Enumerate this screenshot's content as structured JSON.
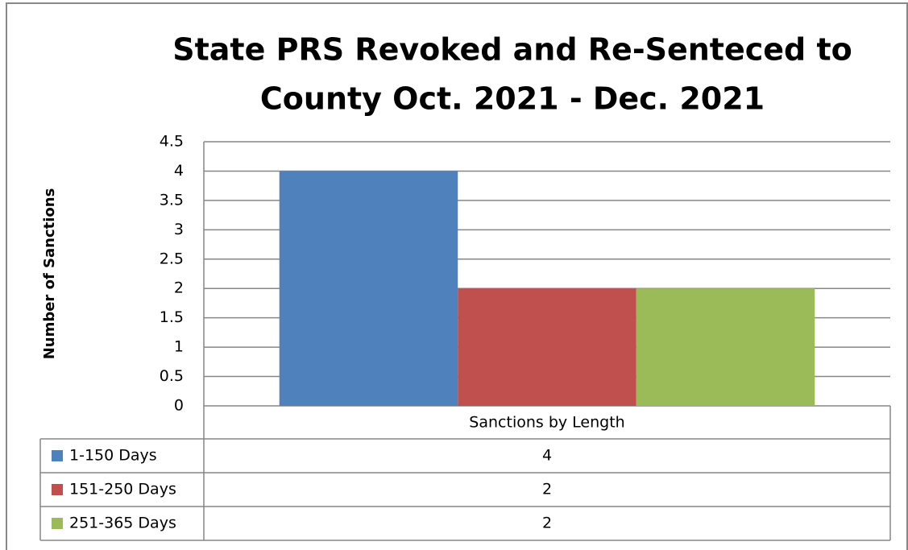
{
  "chart_data": {
    "type": "bar",
    "title": [
      "State PRS Revoked and Re-Senteced to",
      "County Oct. 2021 - Dec. 2021"
    ],
    "y_label": "Number of Sanctions",
    "categories": [
      "Sanctions by Length"
    ],
    "series": [
      {
        "name": "1-150 Days",
        "color": "#4f81bd",
        "values": [
          4
        ]
      },
      {
        "name": "151-250 Days",
        "color": "#c0504d",
        "values": [
          2
        ]
      },
      {
        "name": "251-365 Days",
        "color": "#9bbb59",
        "values": [
          2
        ]
      }
    ],
    "ylim": [
      0,
      4.5
    ],
    "yticks": [
      0,
      0.5,
      1,
      1.5,
      2,
      2.5,
      3,
      3.5,
      4,
      4.5
    ],
    "grid": true,
    "data_table": true
  }
}
